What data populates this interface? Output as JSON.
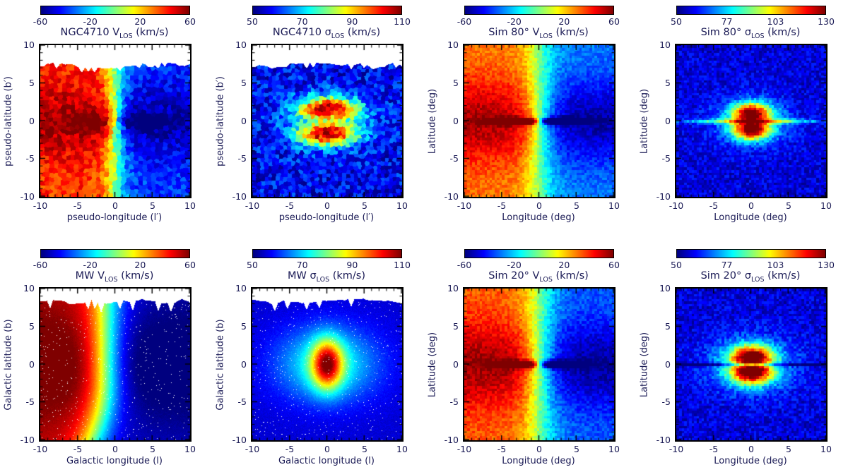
{
  "figure": {
    "background": "#ffffff",
    "text_color": "#1a1a55",
    "axis_color": "#000000",
    "colormap": "jet"
  },
  "chart_data": [
    {
      "id": "ngc4710-vlos",
      "type": "heatmap",
      "style": "voronoi",
      "title": {
        "pre": "NGC4710 V",
        "sub": "LOS",
        "post": " (km/s)"
      },
      "xlabel": "pseudo-longitude (l′)",
      "ylabel": "pseudo-latitude (b′)",
      "xlim": [
        -10,
        10
      ],
      "ylim": [
        -10,
        10
      ],
      "xtick_labels": [
        "-10",
        "-5",
        "0",
        "5",
        "10"
      ],
      "ytick_labels": [
        "10",
        "5",
        "0",
        "-5",
        "-10"
      ],
      "colorbar": {
        "min": -60,
        "max": 60,
        "tick_values": [
          -60,
          -20,
          20,
          60
        ],
        "tick_labels": [
          "-60",
          "-20",
          "20",
          "60"
        ]
      },
      "field": {
        "model": "velocity",
        "seed": 11,
        "noise": 9,
        "cell": 6,
        "params": {
          "amp": 55,
          "lscale": 1.7,
          "bfloor": 0.7,
          "bscale": 5,
          "discAmp": 22,
          "discL": 1.2,
          "discB": 1.3,
          "discExt": 6,
          "shift0": 0
        }
      },
      "mask_top": {
        "base": 7.35,
        "amp": 0.45,
        "spikeProb": 0.3,
        "spikeAmp": 0.6
      }
    },
    {
      "id": "ngc4710-sigma",
      "type": "heatmap",
      "style": "voronoi",
      "title": {
        "pre": "NGC4710 σ",
        "sub": "LOS",
        "post": " (km/s)"
      },
      "xlabel": "pseudo-longitude (l′)",
      "ylabel": "pseudo-latitude (b′)",
      "xlim": [
        -10,
        10
      ],
      "ylim": [
        -10,
        10
      ],
      "xtick_labels": [
        "-10",
        "-5",
        "0",
        "5",
        "10"
      ],
      "ytick_labels": [
        "10",
        "5",
        "0",
        "-5",
        "-10"
      ],
      "colorbar": {
        "min": 50,
        "max": 110,
        "tick_values": [
          50,
          70,
          90,
          110
        ],
        "tick_labels": [
          "50",
          "70",
          "90",
          "110"
        ]
      },
      "field": {
        "model": "dispersion",
        "seed": 22,
        "noise": 7,
        "cell": 5.5,
        "params": {
          "base": 57,
          "haloAmp": 15,
          "haloL": 5.5,
          "haloB": 3.2,
          "coreAmp": 40,
          "coreL": 3.8,
          "coreOff": 1.7,
          "coreB": 1.5,
          "lineAmp": 0,
          "lineB": 1,
          "lineExt": 100
        }
      },
      "mask_top": {
        "base": 7.3,
        "amp": 0.45,
        "spikeProb": 0.3,
        "spikeAmp": 0.6
      }
    },
    {
      "id": "sim80-vlos",
      "type": "heatmap",
      "style": "pixel",
      "title": {
        "pre": "Sim 80° V",
        "sub": "LOS",
        "post": " (km/s)"
      },
      "xlabel": "Longitude (deg)",
      "ylabel": "Latitude (deg)",
      "xlim": [
        -10,
        10
      ],
      "ylim": [
        -10,
        10
      ],
      "xtick_labels": [
        "-10",
        "-5",
        "0",
        "5",
        "10"
      ],
      "ytick_labels": [
        "10",
        "5",
        "0",
        "-5",
        "-10"
      ],
      "colorbar": {
        "min": -60,
        "max": 60,
        "tick_values": [
          -60,
          -20,
          20,
          60
        ],
        "tick_labels": [
          "-60",
          "-20",
          "20",
          "60"
        ]
      },
      "field": {
        "model": "velocity",
        "seed": 33,
        "noise": 6,
        "block": 3.53,
        "params": {
          "amp": 55,
          "lscale": 2.4,
          "bfloor": 0.55,
          "bscale": 5.5,
          "discAmp": 75,
          "discL": 1.0,
          "discB": 0.45,
          "discExt": 5.5,
          "shift0": 0
        }
      },
      "mask_top": null
    },
    {
      "id": "sim80-sigma",
      "type": "heatmap",
      "style": "pixel",
      "title": {
        "pre": "Sim 80° σ",
        "sub": "LOS",
        "post": " (km/s)"
      },
      "xlabel": "Longitude (deg)",
      "ylabel": "Latitude (deg)",
      "xlim": [
        -10,
        10
      ],
      "ylim": [
        -10,
        10
      ],
      "xtick_labels": [
        "-10",
        "-5",
        "0",
        "5",
        "10"
      ],
      "ytick_labels": [
        "10",
        "5",
        "0",
        "-5",
        "-10"
      ],
      "colorbar": {
        "min": 50,
        "max": 130,
        "tick_values": [
          50,
          77,
          103,
          130
        ],
        "tick_labels": [
          "50",
          "77",
          "103",
          "130"
        ]
      },
      "field": {
        "model": "dispersion",
        "seed": 44,
        "noise": 6,
        "block": 3.53,
        "params": {
          "base": 57,
          "haloAmp": 22,
          "haloL": 5,
          "haloB": 3,
          "coreAmp": 62,
          "coreL": 2.4,
          "coreOff": 1.05,
          "coreB": 1.35,
          "lineAmp": 30,
          "lineB": 0.3,
          "lineExt": 9
        }
      },
      "mask_top": null
    },
    {
      "id": "mw-vlos",
      "type": "heatmap",
      "style": "smooth",
      "title": {
        "pre": "MW V",
        "sub": "LOS",
        "post": " (km/s)"
      },
      "xlabel": "Galactic longitude (l)",
      "ylabel": "Galactic latitude (b)",
      "xlim": [
        -10,
        10
      ],
      "ylim": [
        -10,
        10
      ],
      "xtick_labels": [
        "-10",
        "-5",
        "0",
        "5",
        "10"
      ],
      "ytick_labels": [
        "10",
        "5",
        "0",
        "-5",
        "-10"
      ],
      "colorbar": {
        "min": -60,
        "max": 60,
        "tick_values": [
          -60,
          -20,
          20,
          60
        ],
        "tick_labels": [
          "-60",
          "-20",
          "20",
          "60"
        ]
      },
      "field": {
        "model": "velocity",
        "seed": 55,
        "noise": 2,
        "speckle": 0.012,
        "params": {
          "amp": 68,
          "lscale": 3.0,
          "bfloor": 0.78,
          "bscale": 7,
          "discAmp": 0,
          "discL": 1,
          "discB": 1,
          "discExt": 1,
          "shift0": -1.2,
          "shiftQuad": 0.028,
          "shiftKnee": -2
        }
      },
      "mask_top": {
        "base": 8.3,
        "amp": 0.35,
        "spikeProb": 0.3,
        "spikeAmp": 1.1
      }
    },
    {
      "id": "mw-sigma",
      "type": "heatmap",
      "style": "smooth",
      "title": {
        "pre": "MW σ",
        "sub": "LOS",
        "post": " (km/s)"
      },
      "xlabel": "Galactic longitude (l)",
      "ylabel": "Galactic latitude (b)",
      "xlim": [
        -10,
        10
      ],
      "ylim": [
        -10,
        10
      ],
      "xtick_labels": [
        "-10",
        "-5",
        "0",
        "5",
        "10"
      ],
      "ytick_labels": [
        "10",
        "5",
        "0",
        "-5",
        "-10"
      ],
      "colorbar": {
        "min": 50,
        "max": 110,
        "tick_values": [
          50,
          70,
          90,
          110
        ],
        "tick_labels": [
          "50",
          "70",
          "90",
          "110"
        ]
      },
      "field": {
        "model": "dispersion",
        "seed": 66,
        "noise": 1.5,
        "speckle": 0.012,
        "params": {
          "base": 55,
          "haloAmp": 20,
          "haloL": 6.5,
          "haloB": 4.8,
          "coreAmp": 38,
          "coreL": 2.0,
          "coreOff": 0,
          "coreB": 3.2,
          "lineAmp": 0,
          "lineB": 1,
          "lineExt": 100
        }
      },
      "mask_top": {
        "base": 8.25,
        "amp": 0.35,
        "spikeProb": 0.3,
        "spikeAmp": 1.0
      }
    },
    {
      "id": "sim20-vlos",
      "type": "heatmap",
      "style": "pixel",
      "title": {
        "pre": "Sim 20° V",
        "sub": "LOS",
        "post": " (km/s)"
      },
      "xlabel": "Longitude (deg)",
      "ylabel": "Latitude (deg)",
      "xlim": [
        -10,
        10
      ],
      "ylim": [
        -10,
        10
      ],
      "xtick_labels": [
        "-10",
        "-5",
        "0",
        "5",
        "10"
      ],
      "ytick_labels": [
        "10",
        "5",
        "0",
        "-5",
        "-10"
      ],
      "colorbar": {
        "min": -60,
        "max": 60,
        "tick_values": [
          -60,
          -20,
          20,
          60
        ],
        "tick_labels": [
          "-60",
          "-20",
          "20",
          "60"
        ]
      },
      "field": {
        "model": "velocity",
        "seed": 77,
        "noise": 6,
        "block": 3.53,
        "params": {
          "amp": 57,
          "lscale": 2.6,
          "bfloor": 0.6,
          "bscale": 5.5,
          "discAmp": 68,
          "discL": 1.1,
          "discB": 0.5,
          "discExt": 5,
          "shift0": 0
        }
      },
      "mask_top": null
    },
    {
      "id": "sim20-sigma",
      "type": "heatmap",
      "style": "pixel",
      "title": {
        "pre": "Sim 20° σ",
        "sub": "LOS",
        "post": " (km/s)"
      },
      "xlabel": "Longitude (deg)",
      "ylabel": "Latitude (deg)",
      "xlim": [
        -10,
        10
      ],
      "ylim": [
        -10,
        10
      ],
      "xtick_labels": [
        "-10",
        "-5",
        "0",
        "5",
        "10"
      ],
      "ytick_labels": [
        "10",
        "5",
        "0",
        "-5",
        "-10"
      ],
      "colorbar": {
        "min": 50,
        "max": 130,
        "tick_values": [
          50,
          77,
          103,
          130
        ],
        "tick_labels": [
          "50",
          "77",
          "103",
          "130"
        ]
      },
      "field": {
        "model": "dispersion",
        "seed": 88,
        "noise": 6,
        "block": 3.53,
        "params": {
          "base": 57,
          "haloAmp": 26,
          "haloL": 5.5,
          "haloB": 3.6,
          "coreAmp": 64,
          "coreL": 2.7,
          "coreOff": 0.95,
          "coreB": 1.5,
          "lineAmp": -17,
          "lineB": 0.24,
          "lineExt": 100
        }
      },
      "mask_top": null
    }
  ]
}
